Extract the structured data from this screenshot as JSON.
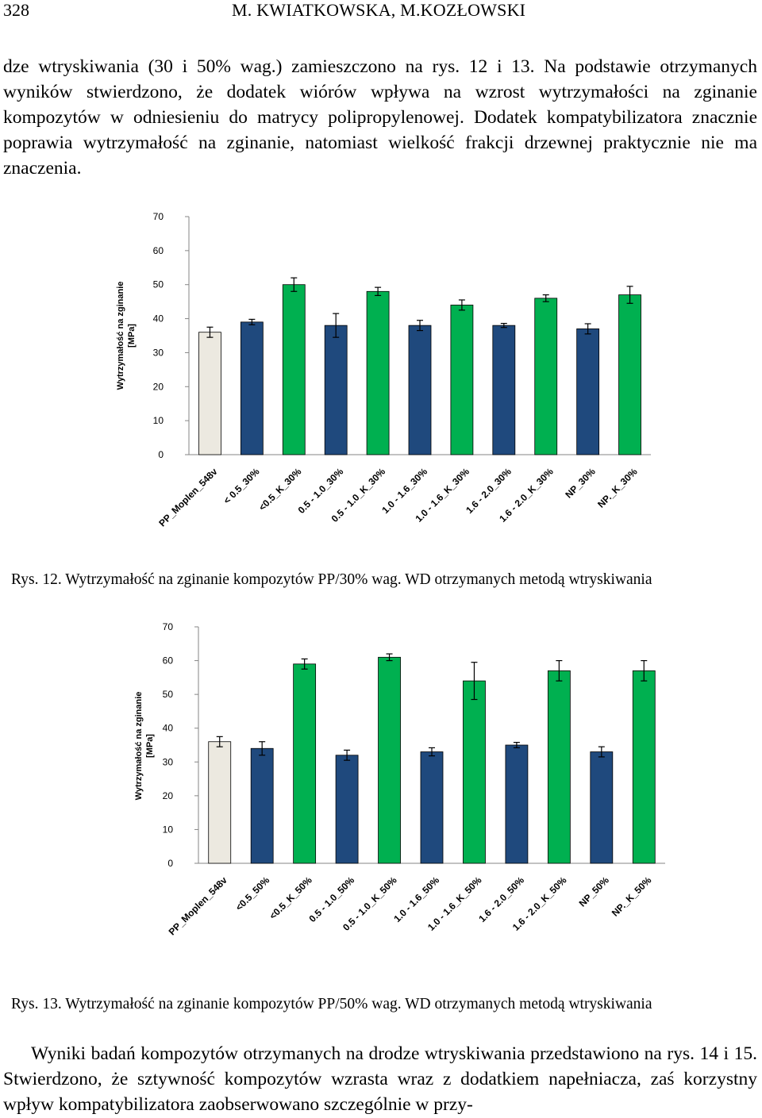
{
  "header": {
    "page_number": "328",
    "authors": "M. KWIATKOWSKA, M.KOZŁOWSKI"
  },
  "intro_paragraph": "dze wtryskiwania (30 i 50% wag.) zamieszczono na rys. 12 i 13. Na podstawie otrzymanych wyników stwierdzono, że dodatek wiórów wpływa na wzrost wytrzymałości na zginanie kompozytów w odniesieniu do matrycy polipropylenowej. Dodatek kompatybilizatora znacznie poprawia wytrzymałość na zginanie, natomiast wielkość frakcji drzewnej praktycznie nie ma znaczenia.",
  "figures": [
    {
      "caption": "Rys. 12. Wytrzymałość na zginanie kompozytów PP/30% wag. WD otrzymanych metodą wtryskiwania"
    },
    {
      "caption": "Rys. 13. Wytrzymałość na zginanie kompozytów PP/50% wag. WD otrzymanych metodą wtryskiwania"
    }
  ],
  "closing_paragraph": "Wyniki badań kompozytów otrzymanych na drodze wtryskiwania przedstawiono na rys. 14 i 15. Stwierdzono, że sztywność kompozytów wzrasta wraz z dodatkiem napełniacza, zaś korzystny wpływ kompatybilizatora zaobserwowano szczególnie w przy-",
  "colors": {
    "reference": "#ece9e0",
    "uncompatibilized": "#1f497d",
    "compatibilized": "#00b050"
  },
  "chart_data": [
    {
      "type": "bar",
      "ylabel": "Wytrzymałość na zginanie [MPa]",
      "ylabel_lines": [
        "Wytrzymałość na zginanie",
        "[MPa]"
      ],
      "ylim": [
        0,
        70
      ],
      "yticks": [
        0,
        10,
        20,
        30,
        40,
        50,
        60,
        70
      ],
      "grid": false,
      "categories": [
        "PP_Moplen_548v",
        "< 0.5_30%",
        "<0.5_K_30%",
        "0.5 - 1.0_30%",
        "0.5 - 1.0_K_30%",
        "1.0 - 1.6_30%",
        "1.0 - 1.6_K_30%",
        "1.6 - 2.0_30%",
        "1.6 - 2.0_K_30%",
        "NP_30%",
        "NP._K_30%"
      ],
      "values": [
        36,
        39,
        50,
        38,
        48,
        38,
        44,
        38,
        46,
        37,
        47
      ],
      "errors": [
        1.5,
        0.8,
        2.0,
        3.5,
        1.2,
        1.5,
        1.5,
        0.6,
        1.0,
        1.5,
        2.5
      ],
      "groups": [
        "reference",
        "uncompatibilized",
        "compatibilized",
        "uncompatibilized",
        "compatibilized",
        "uncompatibilized",
        "compatibilized",
        "uncompatibilized",
        "compatibilized",
        "uncompatibilized",
        "compatibilized"
      ]
    },
    {
      "type": "bar",
      "ylabel": "Wytrzymałość na zginanie [MPa]",
      "ylabel_lines": [
        "Wytrzymałość na zginanie",
        "[MPa]"
      ],
      "ylim": [
        0,
        70
      ],
      "yticks": [
        0,
        10,
        20,
        30,
        40,
        50,
        60,
        70
      ],
      "grid": false,
      "categories": [
        "PP_Moplen_548v",
        "<0.5_50%",
        "<0.5_K_50%",
        "0.5 - 1.0_50%",
        "0.5 - 1.0_K_50%",
        "1.0 - 1.6_50%",
        "1.0 - 1.6_K_50%",
        "1.6 - 2.0_50%",
        "1.6 - 2.0_K_50%",
        "NP_50%",
        "NP._K_50%"
      ],
      "values": [
        36,
        34,
        59,
        32,
        61,
        33,
        54,
        35,
        57,
        33,
        57
      ],
      "errors": [
        1.5,
        2.0,
        1.5,
        1.5,
        1.0,
        1.2,
        5.5,
        0.8,
        3.0,
        1.5,
        3.0
      ],
      "groups": [
        "reference",
        "uncompatibilized",
        "compatibilized",
        "uncompatibilized",
        "compatibilized",
        "uncompatibilized",
        "compatibilized",
        "uncompatibilized",
        "compatibilized",
        "uncompatibilized",
        "compatibilized"
      ]
    }
  ]
}
